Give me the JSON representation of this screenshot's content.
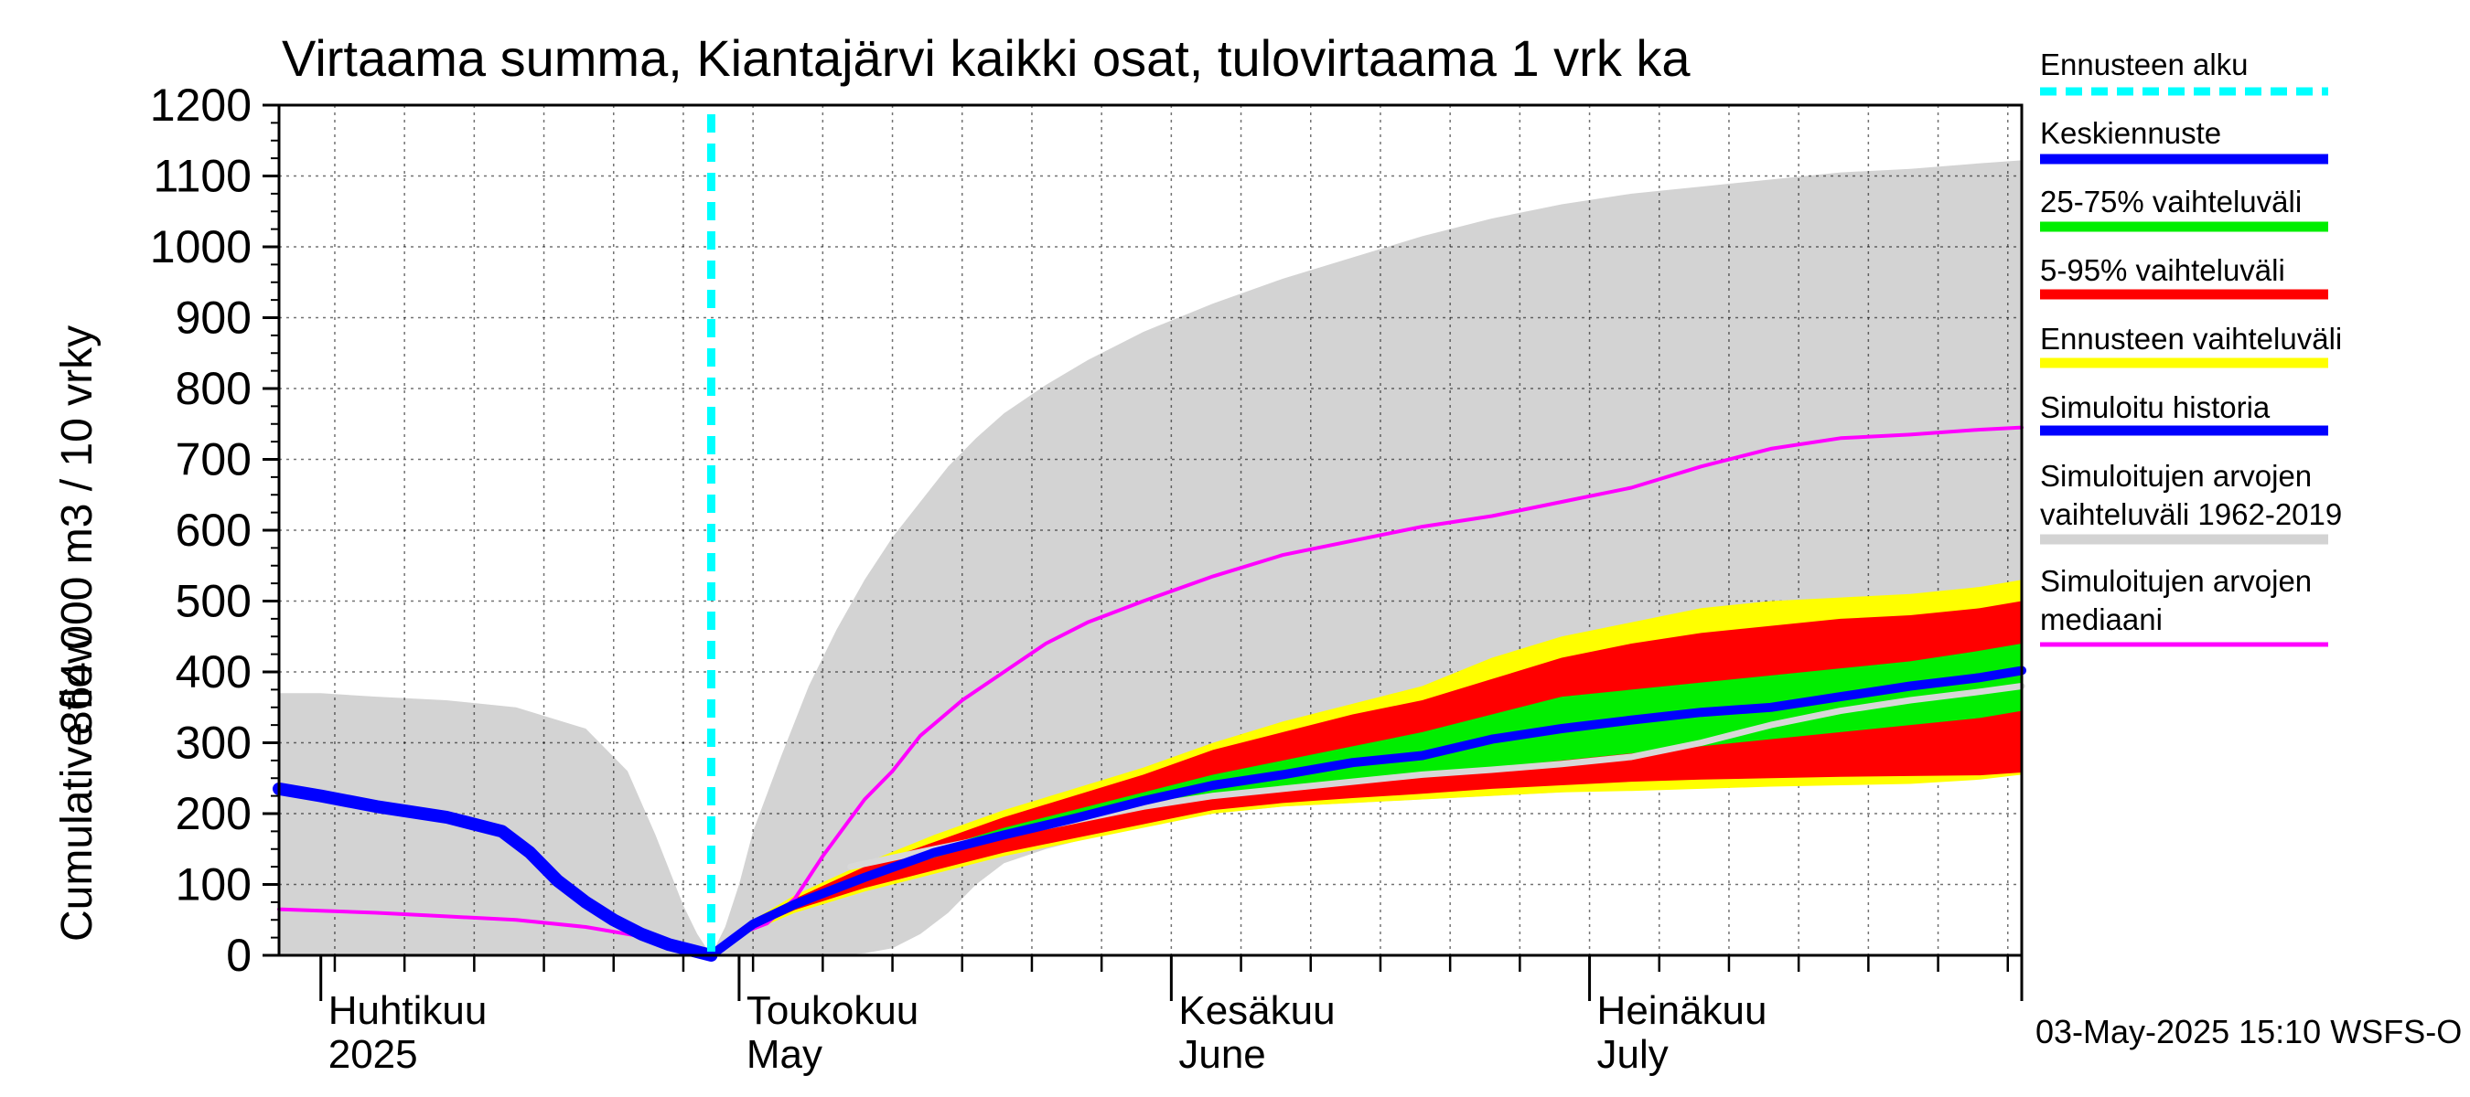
{
  "chart_data": {
    "type": "area",
    "title": "Virtaama summa, Kiantajärvi kaikki osat, tulovirtaama 1 vrk ka",
    "ylabel_line1": "864 000 m3 / 10 vrky",
    "ylabel_line2": "Cumulative flow",
    "ylim": [
      0,
      1200
    ],
    "yticks": [
      0,
      100,
      200,
      300,
      400,
      500,
      600,
      700,
      800,
      900,
      1000,
      1100,
      1200
    ],
    "x_unit": "day of year 2025",
    "xlim": [
      88,
      213
    ],
    "forecast_start_day": 119,
    "month_boundaries": [
      91,
      121,
      152,
      182,
      213
    ],
    "month_labels": [
      {
        "fi": "Huhtikuu",
        "en": "2025",
        "day": 91
      },
      {
        "fi": "Toukokuu",
        "en": "May",
        "day": 121
      },
      {
        "fi": "Kesäkuu",
        "en": "June",
        "day": 152
      },
      {
        "fi": "Heinäkuu",
        "en": "July",
        "day": 182
      }
    ],
    "legend": [
      {
        "key": "forecast_start",
        "label": "Ennusteen alku",
        "color": "#00ffff",
        "style": "dashed"
      },
      {
        "key": "median_forecast",
        "label": "Keskiennuste",
        "color": "#0000ff"
      },
      {
        "key": "p25_75",
        "label": "25-75% vaihteluväli",
        "color": "#00ee00"
      },
      {
        "key": "p5_95",
        "label": "5-95% vaihteluväli",
        "color": "#ff0000"
      },
      {
        "key": "forecast_range",
        "label": "Ennusteen vaihteluväli",
        "color": "#ffff00"
      },
      {
        "key": "simulated_history",
        "label": "Simuloitu historia",
        "color": "#0000ff"
      },
      {
        "key": "hist_range",
        "label": "Simuloitujen arvojen vaihteluväli 1962-2019",
        "label_lines": [
          "Simuloitujen arvojen",
          "vaihteluväli 1962-2019"
        ],
        "color": "#d3d3d3"
      },
      {
        "key": "hist_median",
        "label": "Simuloitujen arvojen mediaani",
        "label_lines": [
          "Simuloitujen arvojen",
          "mediaani"
        ],
        "color": "#ff00ff"
      }
    ],
    "series": {
      "hist_range": {
        "x": [
          88,
          91,
          95,
          100,
          105,
          110,
          113,
          115,
          117,
          118,
          119,
          120,
          121,
          122,
          124,
          126,
          128,
          130,
          132,
          134,
          136,
          138,
          140,
          143,
          146,
          150,
          155,
          160,
          165,
          170,
          175,
          180,
          185,
          190,
          195,
          200,
          205,
          210,
          213
        ],
        "upper": [
          370,
          370,
          365,
          360,
          350,
          320,
          260,
          170,
          70,
          30,
          0,
          40,
          100,
          175,
          280,
          380,
          460,
          530,
          590,
          640,
          690,
          730,
          765,
          805,
          840,
          880,
          920,
          955,
          985,
          1015,
          1040,
          1060,
          1075,
          1085,
          1095,
          1105,
          1110,
          1118,
          1122
        ],
        "lower": [
          0,
          0,
          0,
          0,
          0,
          0,
          0,
          0,
          0,
          0,
          0,
          0,
          0,
          0,
          0,
          0,
          0,
          3,
          10,
          30,
          60,
          100,
          130,
          150,
          165,
          185,
          200,
          210,
          215,
          220,
          225,
          230,
          235,
          240,
          245,
          250,
          250,
          252,
          255
        ]
      },
      "forecast_range": {
        "x": [
          119,
          122,
          125,
          130,
          135,
          140,
          145,
          150,
          155,
          160,
          165,
          170,
          175,
          180,
          185,
          190,
          195,
          200,
          205,
          210,
          213
        ],
        "upper": [
          0,
          50,
          85,
          130,
          170,
          205,
          235,
          265,
          300,
          330,
          355,
          380,
          420,
          450,
          470,
          490,
          500,
          505,
          510,
          520,
          530
        ],
        "lower": [
          0,
          35,
          60,
          90,
          115,
          140,
          160,
          180,
          200,
          210,
          215,
          220,
          225,
          230,
          232,
          235,
          238,
          240,
          242,
          248,
          255
        ]
      },
      "p5_95": {
        "x": [
          119,
          122,
          125,
          130,
          135,
          140,
          145,
          150,
          155,
          160,
          165,
          170,
          175,
          180,
          185,
          190,
          195,
          200,
          205,
          210,
          213
        ],
        "upper": [
          0,
          48,
          80,
          125,
          160,
          195,
          225,
          255,
          290,
          315,
          340,
          360,
          390,
          420,
          440,
          455,
          465,
          475,
          480,
          490,
          500
        ],
        "lower": [
          0,
          38,
          64,
          95,
          120,
          145,
          165,
          185,
          205,
          215,
          222,
          228,
          235,
          240,
          245,
          248,
          250,
          252,
          253,
          254,
          258
        ]
      },
      "p25_75": {
        "x": [
          119,
          122,
          125,
          130,
          135,
          140,
          145,
          150,
          155,
          160,
          165,
          170,
          175,
          180,
          185,
          190,
          195,
          200,
          205,
          210,
          213
        ],
        "upper": [
          0,
          46,
          74,
          115,
          150,
          180,
          205,
          230,
          255,
          275,
          295,
          315,
          340,
          365,
          375,
          385,
          395,
          405,
          415,
          430,
          440
        ],
        "lower": [
          0,
          42,
          68,
          105,
          138,
          165,
          188,
          210,
          225,
          235,
          245,
          255,
          265,
          275,
          285,
          295,
          305,
          315,
          325,
          335,
          345
        ]
      },
      "median_forecast": {
        "x": [
          119,
          122,
          125,
          130,
          135,
          140,
          145,
          150,
          155,
          160,
          165,
          170,
          175,
          180,
          185,
          190,
          195,
          200,
          205,
          210,
          213
        ],
        "y": [
          0,
          44,
          72,
          110,
          145,
          170,
          193,
          218,
          240,
          255,
          272,
          282,
          305,
          320,
          332,
          343,
          350,
          365,
          380,
          392,
          402
        ]
      },
      "simulated_history": {
        "x": [
          88,
          91,
          95,
          100,
          104,
          106,
          108,
          110,
          112,
          114,
          116,
          118,
          119
        ],
        "y": [
          235,
          225,
          210,
          195,
          175,
          145,
          105,
          75,
          50,
          30,
          15,
          5,
          0
        ]
      },
      "hist_median_history": {
        "x": [
          88,
          95,
          100,
          105,
          110,
          113,
          116,
          118,
          119
        ],
        "y": [
          65,
          60,
          55,
          50,
          40,
          30,
          20,
          8,
          0
        ]
      },
      "hist_median": {
        "x": [
          119,
          121,
          123,
          125,
          127,
          130,
          132,
          134,
          137,
          140,
          143,
          146,
          150,
          155,
          160,
          165,
          170,
          175,
          180,
          185,
          190,
          195,
          200,
          205,
          210,
          213
        ],
        "y": [
          0,
          30,
          45,
          80,
          140,
          220,
          260,
          310,
          360,
          400,
          440,
          470,
          500,
          535,
          565,
          585,
          605,
          620,
          640,
          660,
          690,
          715,
          730,
          735,
          742,
          745
        ]
      },
      "hist_median_grey": {
        "x": [
          129,
          135,
          140,
          145,
          150,
          155,
          160,
          165,
          170,
          175,
          180,
          185,
          190,
          195,
          200,
          205,
          210,
          213
        ],
        "y": [
          125,
          150,
          170,
          190,
          210,
          225,
          235,
          245,
          255,
          262,
          270,
          280,
          300,
          325,
          345,
          360,
          372,
          380
        ]
      }
    }
  },
  "timestamp": "03-May-2025 15:10 WSFS-O"
}
